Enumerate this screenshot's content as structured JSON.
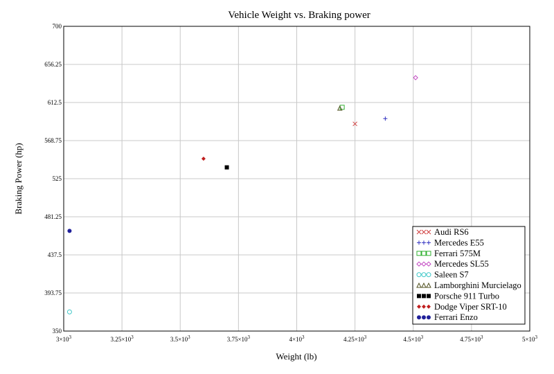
{
  "chart_data": {
    "type": "scatter",
    "title": "Vehicle Weight vs. Braking power",
    "xlabel": "Weight (lb)",
    "ylabel": "Braking Power (hp)",
    "xlim": [
      3000,
      5000
    ],
    "ylim": [
      350,
      700
    ],
    "xticks": [
      {
        "value": 3000,
        "mantissa": "3",
        "exp": "3"
      },
      {
        "value": 3250,
        "mantissa": "3.25",
        "exp": "3"
      },
      {
        "value": 3500,
        "mantissa": "3.5",
        "exp": "3"
      },
      {
        "value": 3750,
        "mantissa": "3.75",
        "exp": "3"
      },
      {
        "value": 4000,
        "mantissa": "4",
        "exp": "3"
      },
      {
        "value": 4250,
        "mantissa": "4.25",
        "exp": "3"
      },
      {
        "value": 4500,
        "mantissa": "4.5",
        "exp": "3"
      },
      {
        "value": 4750,
        "mantissa": "4.75",
        "exp": "3"
      },
      {
        "value": 5000,
        "mantissa": "5",
        "exp": "3"
      }
    ],
    "yticks": [
      "350",
      "393.75",
      "437.5",
      "481.25",
      "525",
      "568.75",
      "612.5",
      "656.25",
      "700"
    ],
    "grid": true,
    "legend_position": "bottom-right",
    "series": [
      {
        "name": "Audi RS6",
        "marker": "x",
        "color": "#d04040",
        "points": [
          [
            4250,
            588
          ]
        ]
      },
      {
        "name": "Mercedes E55",
        "marker": "plus",
        "color": "#3030c0",
        "points": [
          [
            4380,
            594
          ]
        ]
      },
      {
        "name": "Ferrari 575M",
        "marker": "square-open",
        "color": "#30b030",
        "points": [
          [
            4195,
            607
          ]
        ]
      },
      {
        "name": "Mercedes SL55",
        "marker": "diamond-open",
        "color": "#c040c0",
        "points": [
          [
            4510,
            641
          ]
        ]
      },
      {
        "name": "Saleen S7",
        "marker": "circle-open",
        "color": "#40c8c8",
        "points": [
          [
            3025,
            372
          ]
        ]
      },
      {
        "name": "Lamborghini Murcielago",
        "marker": "triangle-open",
        "color": "#505020",
        "points": [
          [
            4185,
            606
          ]
        ]
      },
      {
        "name": "Porsche 911 Turbo",
        "marker": "square",
        "color": "#000000",
        "points": [
          [
            3700,
            538
          ]
        ]
      },
      {
        "name": "Dodge Viper SRT-10",
        "marker": "diamond",
        "color": "#c02020",
        "points": [
          [
            3600,
            548
          ]
        ]
      },
      {
        "name": "Ferrari Enzo",
        "marker": "circle",
        "color": "#20209a",
        "points": [
          [
            3025,
            465
          ]
        ]
      }
    ]
  }
}
